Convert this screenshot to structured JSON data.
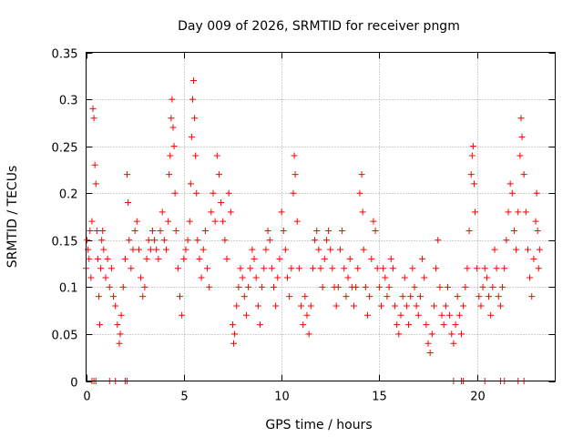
{
  "chart_data": {
    "type": "scatter",
    "title": "Day 009 of 2026, SRMTID for receiver pngm",
    "xlabel": "GPS time / hours",
    "ylabel": "SRMTID / TECUs",
    "xlim": [
      0,
      24
    ],
    "ylim": [
      0,
      0.35
    ],
    "xticks": [
      0,
      5,
      10,
      15,
      20
    ],
    "xtick_labels": [
      "0",
      "5",
      "10",
      "15",
      "20"
    ],
    "yticks": [
      0,
      0.05,
      0.1,
      0.15,
      0.2,
      0.25,
      0.3,
      0.35
    ],
    "ytick_labels": [
      "0",
      "0.05",
      "0.1",
      "0.15",
      "0.2",
      "0.25",
      "0.3",
      "0.35"
    ],
    "grid": true,
    "marker": "+",
    "color": "#ff0000",
    "series": [
      {
        "name": "SRMTID",
        "points": [
          [
            0.0,
            0.12
          ],
          [
            0.05,
            0.15
          ],
          [
            0.1,
            0.14
          ],
          [
            0.15,
            0.13
          ],
          [
            0.2,
            0.16
          ],
          [
            0.25,
            0.11
          ],
          [
            0.3,
            0.17
          ],
          [
            0.35,
            0.29
          ],
          [
            0.4,
            0.28
          ],
          [
            0.45,
            0.23
          ],
          [
            0.5,
            0.21
          ],
          [
            0.55,
            0.16
          ],
          [
            0.6,
            0.13
          ],
          [
            0.65,
            0.09
          ],
          [
            0.7,
            0.06
          ],
          [
            0.75,
            0.12
          ],
          [
            0.8,
            0.15
          ],
          [
            0.85,
            0.16
          ],
          [
            0.9,
            0.14
          ],
          [
            1.0,
            0.11
          ],
          [
            1.1,
            0.13
          ],
          [
            1.2,
            0.1
          ],
          [
            1.3,
            0.12
          ],
          [
            1.4,
            0.09
          ],
          [
            1.5,
            0.08
          ],
          [
            1.6,
            0.06
          ],
          [
            1.7,
            0.04
          ],
          [
            1.75,
            0.05
          ],
          [
            1.8,
            0.07
          ],
          [
            1.9,
            0.1
          ],
          [
            2.0,
            0.13
          ],
          [
            2.1,
            0.22
          ],
          [
            2.15,
            0.19
          ],
          [
            2.2,
            0.15
          ],
          [
            2.3,
            0.12
          ],
          [
            2.4,
            0.14
          ],
          [
            2.5,
            0.16
          ],
          [
            2.6,
            0.17
          ],
          [
            2.7,
            0.14
          ],
          [
            2.8,
            0.11
          ],
          [
            2.9,
            0.09
          ],
          [
            3.0,
            0.1
          ],
          [
            3.1,
            0.13
          ],
          [
            3.2,
            0.15
          ],
          [
            3.3,
            0.14
          ],
          [
            3.4,
            0.16
          ],
          [
            3.5,
            0.15
          ],
          [
            3.6,
            0.14
          ],
          [
            3.7,
            0.13
          ],
          [
            3.8,
            0.16
          ],
          [
            3.9,
            0.18
          ],
          [
            4.0,
            0.15
          ],
          [
            4.1,
            0.14
          ],
          [
            4.2,
            0.17
          ],
          [
            4.25,
            0.22
          ],
          [
            4.3,
            0.24
          ],
          [
            4.35,
            0.28
          ],
          [
            4.4,
            0.3
          ],
          [
            4.45,
            0.27
          ],
          [
            4.5,
            0.25
          ],
          [
            4.55,
            0.2
          ],
          [
            4.6,
            0.16
          ],
          [
            4.7,
            0.12
          ],
          [
            4.8,
            0.09
          ],
          [
            4.9,
            0.07
          ],
          [
            5.0,
            0.13
          ],
          [
            5.1,
            0.14
          ],
          [
            5.2,
            0.15
          ],
          [
            5.3,
            0.17
          ],
          [
            5.35,
            0.21
          ],
          [
            5.4,
            0.26
          ],
          [
            5.45,
            0.3
          ],
          [
            5.5,
            0.32
          ],
          [
            5.55,
            0.28
          ],
          [
            5.6,
            0.24
          ],
          [
            5.65,
            0.2
          ],
          [
            5.7,
            0.15
          ],
          [
            5.8,
            0.13
          ],
          [
            5.9,
            0.11
          ],
          [
            6.0,
            0.14
          ],
          [
            6.1,
            0.16
          ],
          [
            6.2,
            0.12
          ],
          [
            6.3,
            0.1
          ],
          [
            6.4,
            0.18
          ],
          [
            6.5,
            0.2
          ],
          [
            6.6,
            0.17
          ],
          [
            6.7,
            0.24
          ],
          [
            6.8,
            0.22
          ],
          [
            6.9,
            0.19
          ],
          [
            7.0,
            0.17
          ],
          [
            7.1,
            0.15
          ],
          [
            7.2,
            0.13
          ],
          [
            7.3,
            0.2
          ],
          [
            7.4,
            0.18
          ],
          [
            7.5,
            0.06
          ],
          [
            7.55,
            0.04
          ],
          [
            7.6,
            0.05
          ],
          [
            7.7,
            0.08
          ],
          [
            7.8,
            0.1
          ],
          [
            7.9,
            0.12
          ],
          [
            8.0,
            0.11
          ],
          [
            8.1,
            0.09
          ],
          [
            8.2,
            0.07
          ],
          [
            8.3,
            0.1
          ],
          [
            8.4,
            0.12
          ],
          [
            8.5,
            0.14
          ],
          [
            8.6,
            0.13
          ],
          [
            8.7,
            0.11
          ],
          [
            8.8,
            0.08
          ],
          [
            8.9,
            0.06
          ],
          [
            9.0,
            0.1
          ],
          [
            9.1,
            0.12
          ],
          [
            9.2,
            0.14
          ],
          [
            9.3,
            0.16
          ],
          [
            9.4,
            0.15
          ],
          [
            9.5,
            0.12
          ],
          [
            9.6,
            0.1
          ],
          [
            9.7,
            0.08
          ],
          [
            9.8,
            0.11
          ],
          [
            9.9,
            0.13
          ],
          [
            10.0,
            0.18
          ],
          [
            10.1,
            0.16
          ],
          [
            10.2,
            0.14
          ],
          [
            10.3,
            0.11
          ],
          [
            10.4,
            0.09
          ],
          [
            10.5,
            0.12
          ],
          [
            10.6,
            0.2
          ],
          [
            10.65,
            0.24
          ],
          [
            10.7,
            0.22
          ],
          [
            10.8,
            0.17
          ],
          [
            10.9,
            0.12
          ],
          [
            11.0,
            0.08
          ],
          [
            11.1,
            0.06
          ],
          [
            11.2,
            0.09
          ],
          [
            11.3,
            0.07
          ],
          [
            11.4,
            0.05
          ],
          [
            11.5,
            0.08
          ],
          [
            11.6,
            0.12
          ],
          [
            11.7,
            0.15
          ],
          [
            11.8,
            0.16
          ],
          [
            11.9,
            0.14
          ],
          [
            12.0,
            0.12
          ],
          [
            12.1,
            0.1
          ],
          [
            12.2,
            0.13
          ],
          [
            12.3,
            0.15
          ],
          [
            12.4,
            0.16
          ],
          [
            12.5,
            0.14
          ],
          [
            12.6,
            0.12
          ],
          [
            12.7,
            0.1
          ],
          [
            12.8,
            0.08
          ],
          [
            12.9,
            0.1
          ],
          [
            13.0,
            0.14
          ],
          [
            13.1,
            0.16
          ],
          [
            13.2,
            0.12
          ],
          [
            13.3,
            0.09
          ],
          [
            13.4,
            0.11
          ],
          [
            13.5,
            0.13
          ],
          [
            13.6,
            0.1
          ],
          [
            13.7,
            0.08
          ],
          [
            13.8,
            0.1
          ],
          [
            13.9,
            0.12
          ],
          [
            14.0,
            0.2
          ],
          [
            14.1,
            0.22
          ],
          [
            14.15,
            0.18
          ],
          [
            14.2,
            0.14
          ],
          [
            14.3,
            0.1
          ],
          [
            14.4,
            0.07
          ],
          [
            14.5,
            0.09
          ],
          [
            14.6,
            0.13
          ],
          [
            14.7,
            0.17
          ],
          [
            14.8,
            0.16
          ],
          [
            14.9,
            0.12
          ],
          [
            15.0,
            0.1
          ],
          [
            15.1,
            0.08
          ],
          [
            15.2,
            0.12
          ],
          [
            15.3,
            0.11
          ],
          [
            15.4,
            0.09
          ],
          [
            15.5,
            0.1
          ],
          [
            15.6,
            0.13
          ],
          [
            15.7,
            0.12
          ],
          [
            15.8,
            0.08
          ],
          [
            15.9,
            0.06
          ],
          [
            16.0,
            0.05
          ],
          [
            16.1,
            0.07
          ],
          [
            16.2,
            0.09
          ],
          [
            16.3,
            0.11
          ],
          [
            16.4,
            0.08
          ],
          [
            16.5,
            0.06
          ],
          [
            16.6,
            0.09
          ],
          [
            16.7,
            0.12
          ],
          [
            16.8,
            0.1
          ],
          [
            16.9,
            0.08
          ],
          [
            17.0,
            0.07
          ],
          [
            17.1,
            0.09
          ],
          [
            17.2,
            0.13
          ],
          [
            17.3,
            0.11
          ],
          [
            17.4,
            0.06
          ],
          [
            17.5,
            0.04
          ],
          [
            17.6,
            0.03
          ],
          [
            17.7,
            0.05
          ],
          [
            17.8,
            0.08
          ],
          [
            17.9,
            0.12
          ],
          [
            18.0,
            0.15
          ],
          [
            18.1,
            0.1
          ],
          [
            18.2,
            0.07
          ],
          [
            18.3,
            0.06
          ],
          [
            18.4,
            0.08
          ],
          [
            18.5,
            0.1
          ],
          [
            18.6,
            0.07
          ],
          [
            18.7,
            0.05
          ],
          [
            18.8,
            0.04
          ],
          [
            18.9,
            0.06
          ],
          [
            19.0,
            0.09
          ],
          [
            19.1,
            0.07
          ],
          [
            19.2,
            0.05
          ],
          [
            19.3,
            0.08
          ],
          [
            19.4,
            0.1
          ],
          [
            19.5,
            0.12
          ],
          [
            19.6,
            0.16
          ],
          [
            19.7,
            0.22
          ],
          [
            19.75,
            0.24
          ],
          [
            19.8,
            0.25
          ],
          [
            19.85,
            0.21
          ],
          [
            19.9,
            0.18
          ],
          [
            20.0,
            0.12
          ],
          [
            20.1,
            0.09
          ],
          [
            20.2,
            0.08
          ],
          [
            20.3,
            0.1
          ],
          [
            20.4,
            0.12
          ],
          [
            20.5,
            0.11
          ],
          [
            20.6,
            0.09
          ],
          [
            20.7,
            0.07
          ],
          [
            20.8,
            0.1
          ],
          [
            20.9,
            0.14
          ],
          [
            21.0,
            0.12
          ],
          [
            21.1,
            0.09
          ],
          [
            21.2,
            0.08
          ],
          [
            21.3,
            0.1
          ],
          [
            21.4,
            0.12
          ],
          [
            21.5,
            0.15
          ],
          [
            21.6,
            0.18
          ],
          [
            21.7,
            0.21
          ],
          [
            21.8,
            0.2
          ],
          [
            21.9,
            0.16
          ],
          [
            22.0,
            0.14
          ],
          [
            22.1,
            0.18
          ],
          [
            22.2,
            0.24
          ],
          [
            22.25,
            0.28
          ],
          [
            22.3,
            0.26
          ],
          [
            22.4,
            0.22
          ],
          [
            22.5,
            0.18
          ],
          [
            22.6,
            0.14
          ],
          [
            22.7,
            0.11
          ],
          [
            22.8,
            0.09
          ],
          [
            22.9,
            0.13
          ],
          [
            23.0,
            0.17
          ],
          [
            23.05,
            0.2
          ],
          [
            23.1,
            0.16
          ],
          [
            23.15,
            0.12
          ],
          [
            23.2,
            0.14
          ],
          [
            0.3,
            0.0
          ],
          [
            0.4,
            0.0
          ],
          [
            0.5,
            0.0
          ],
          [
            1.2,
            0.0
          ],
          [
            1.5,
            0.0
          ],
          [
            2.0,
            0.0
          ],
          [
            2.1,
            0.0
          ],
          [
            18.8,
            0.0
          ],
          [
            19.2,
            0.0
          ],
          [
            19.3,
            0.0
          ],
          [
            20.4,
            0.0
          ],
          [
            21.2,
            0.0
          ],
          [
            21.4,
            0.0
          ],
          [
            22.1,
            0.0
          ],
          [
            22.4,
            0.0
          ]
        ]
      }
    ]
  }
}
